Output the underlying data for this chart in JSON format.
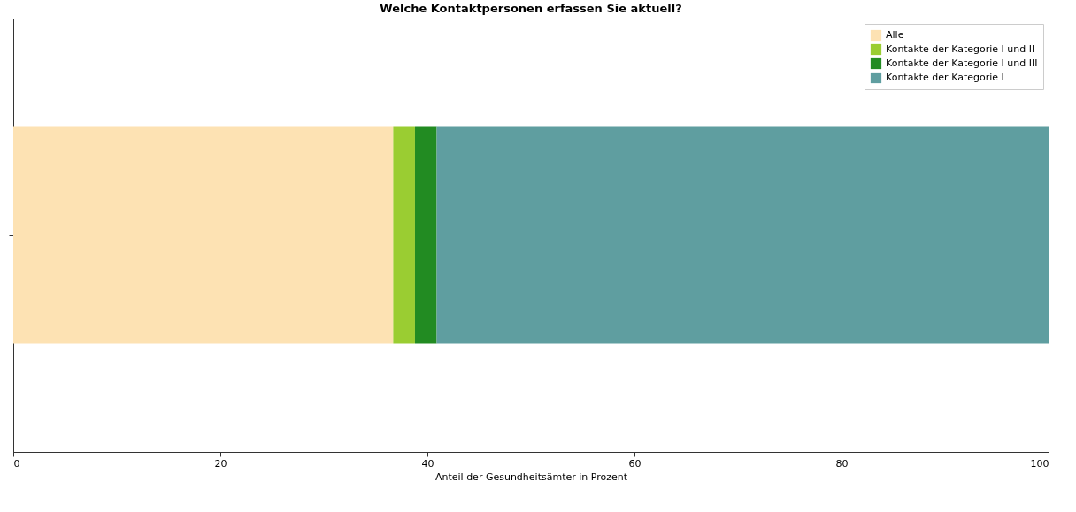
{
  "chart_data": {
    "type": "bar",
    "orientation": "horizontal",
    "stacked": true,
    "title": "Welche Kontaktpersonen erfassen Sie aktuell?",
    "xlabel": "Anteil der Gesundheitsämter in Prozent",
    "categories": [
      null
    ],
    "series": [
      {
        "name": "Alle",
        "color": "#fde2b3",
        "values": [
          36.7
        ]
      },
      {
        "name": "Kontakte der Kategorie I und II",
        "color": "#9acd32",
        "values": [
          2.1
        ]
      },
      {
        "name": "Kontakte der Kategorie I und III",
        "color": "#228b22",
        "values": [
          2.1
        ]
      },
      {
        "name": "Kontakte der Kategorie I",
        "color": "#5f9ea0",
        "values": [
          59.1
        ]
      }
    ],
    "xlim": [
      0,
      100
    ],
    "xticks": [
      0,
      20,
      40,
      60,
      80,
      100
    ],
    "legend": "top right",
    "tick_labels": "x",
    "grid": false
  }
}
